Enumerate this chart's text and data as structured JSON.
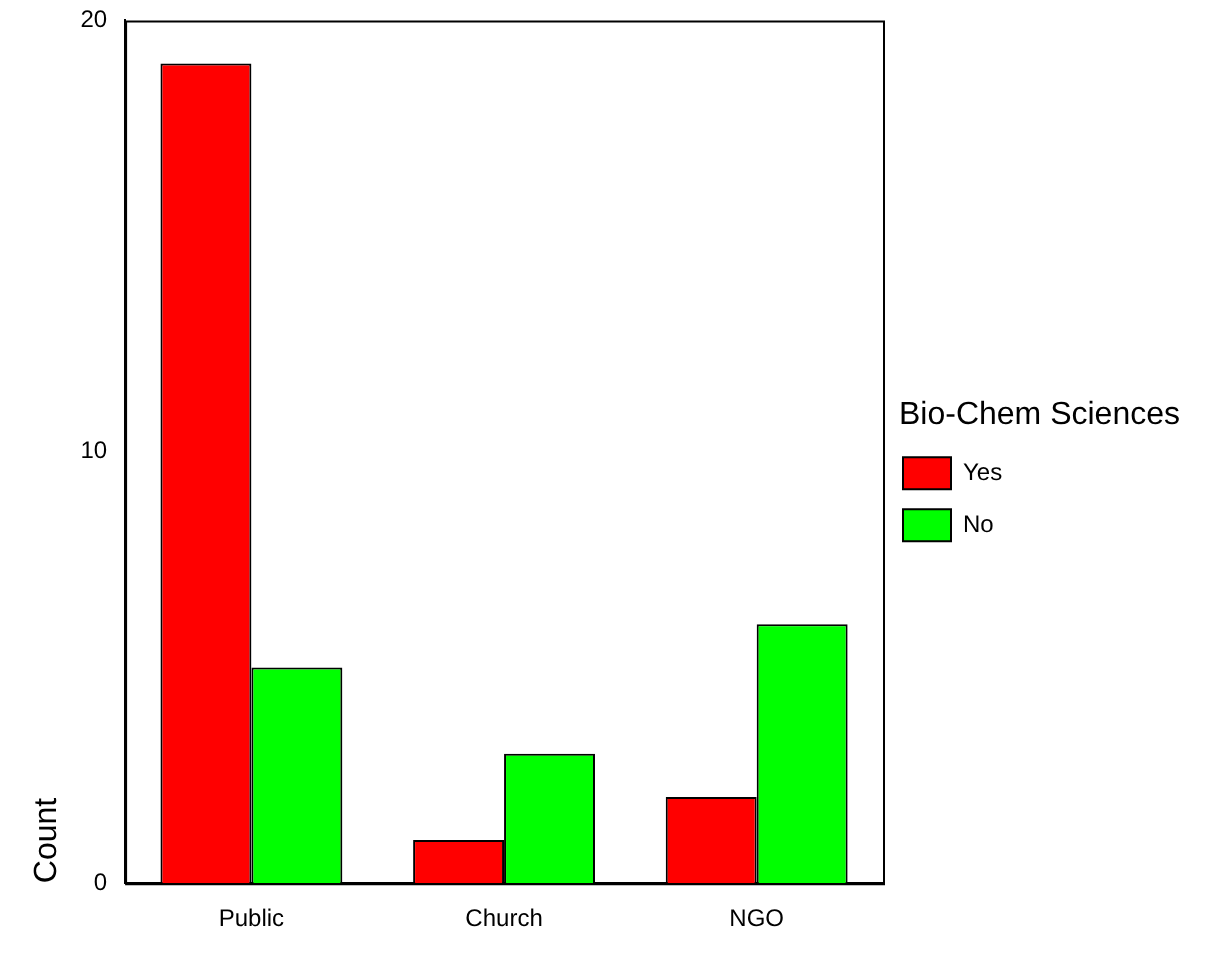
{
  "chart_data": {
    "type": "bar",
    "categories": [
      "Public",
      "Church",
      "NGO"
    ],
    "series": [
      {
        "name": "Yes",
        "color": "#ff0000",
        "values": [
          19,
          1,
          2
        ]
      },
      {
        "name": "No",
        "color": "#00ff00",
        "values": [
          5,
          3,
          6
        ]
      }
    ],
    "ylabel": "Count",
    "legend_title": "Bio-Chem Sciences",
    "legend": "right",
    "grid": false,
    "ylim": [
      0,
      20
    ],
    "yticks": [
      0,
      10,
      20
    ]
  }
}
